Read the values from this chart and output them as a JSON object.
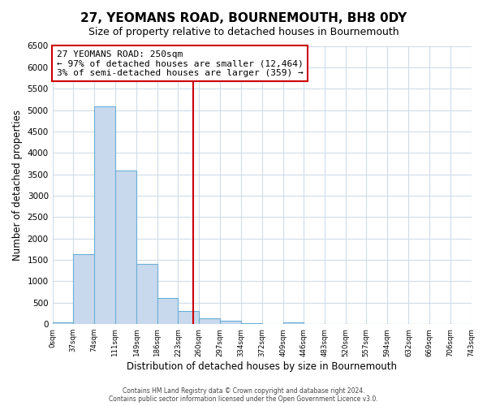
{
  "title": "27, YEOMANS ROAD, BOURNEMOUTH, BH8 0DY",
  "subtitle": "Size of property relative to detached houses in Bournemouth",
  "xlabel": "Distribution of detached houses by size in Bournemouth",
  "ylabel": "Number of detached properties",
  "bar_edges": [
    0,
    37,
    74,
    111,
    149,
    186,
    223,
    260,
    297,
    334,
    372,
    409,
    446,
    483,
    520,
    557,
    594,
    632,
    669,
    706,
    743
  ],
  "bar_heights": [
    50,
    1630,
    5080,
    3580,
    1400,
    620,
    300,
    145,
    80,
    30,
    0,
    50,
    0,
    0,
    0,
    0,
    0,
    0,
    0,
    0
  ],
  "bar_color": "#c8d9ee",
  "bar_edge_color": "#6aafd6",
  "property_size": 250,
  "property_line_color": "#cc0000",
  "annotation_title": "27 YEOMANS ROAD: 250sqm",
  "annotation_line1": "← 97% of detached houses are smaller (12,464)",
  "annotation_line2": "3% of semi-detached houses are larger (359) →",
  "annotation_box_edge": "#cc0000",
  "ylim": [
    0,
    6500
  ],
  "xlim": [
    0,
    743
  ],
  "tick_labels": [
    "0sqm",
    "37sqm",
    "74sqm",
    "111sqm",
    "149sqm",
    "186sqm",
    "223sqm",
    "260sqm",
    "297sqm",
    "334sqm",
    "372sqm",
    "409sqm",
    "446sqm",
    "483sqm",
    "520sqm",
    "557sqm",
    "594sqm",
    "632sqm",
    "669sqm",
    "706sqm",
    "743sqm"
  ],
  "yticks": [
    0,
    500,
    1000,
    1500,
    2000,
    2500,
    3000,
    3500,
    4000,
    4500,
    5000,
    5500,
    6000,
    6500
  ],
  "footer_line1": "Contains HM Land Registry data © Crown copyright and database right 2024.",
  "footer_line2": "Contains public sector information licensed under the Open Government Licence v3.0.",
  "background_color": "#ffffff",
  "plot_background_color": "#ffffff",
  "grid_color": "#d0dce8"
}
